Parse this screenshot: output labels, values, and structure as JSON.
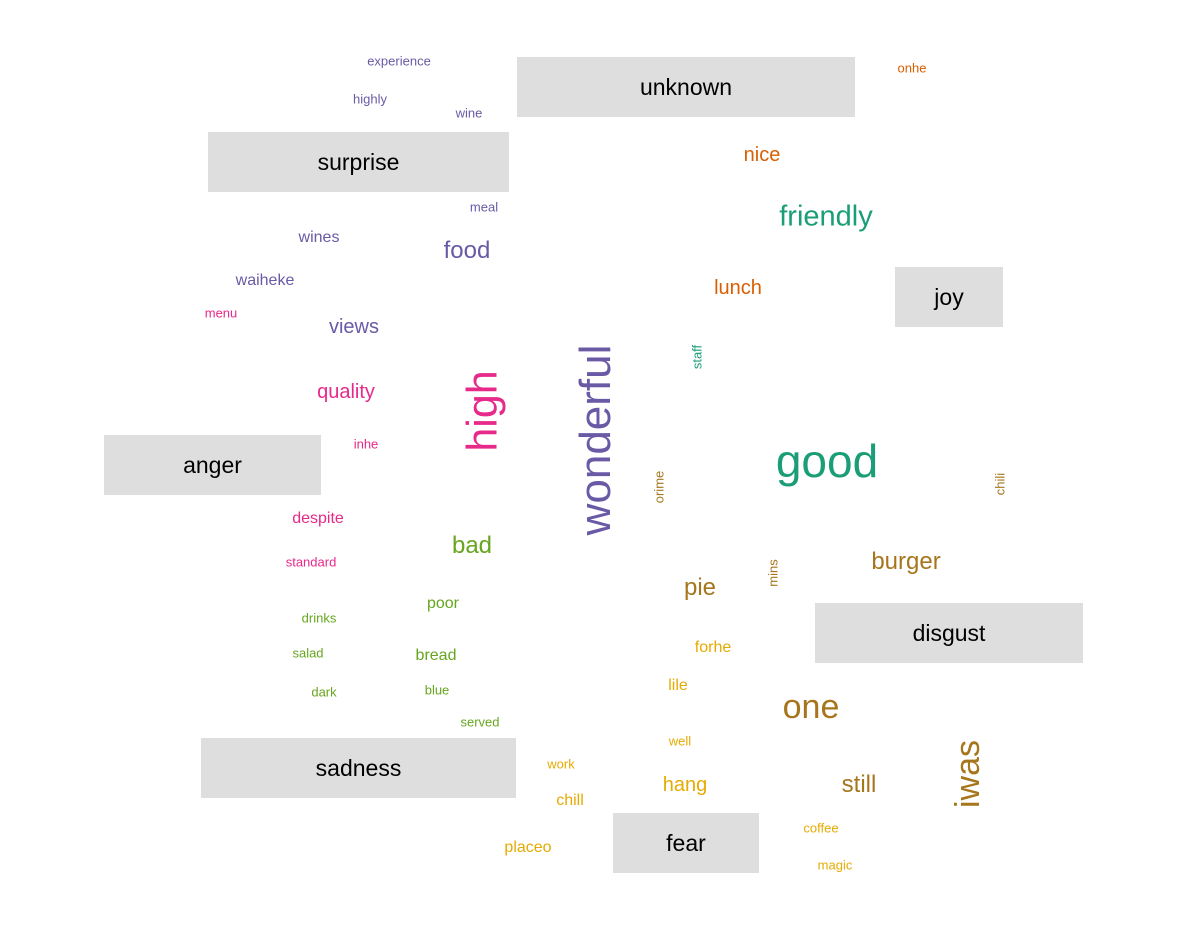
{
  "chart_data": {
    "type": "wordcloud",
    "colors": {
      "surprise": "#6a5aa6",
      "unknown": "#d95f02",
      "joy": "#1b9e77",
      "anger": "#e7298a",
      "sadness": "#66a61e",
      "disgust": "#a6761d",
      "fear": "#e6ab02"
    },
    "groups": [
      {
        "label": "unknown",
        "words": [
          {
            "text": "onhe",
            "size": 1
          },
          {
            "text": "nice",
            "size": 3
          },
          {
            "text": "lunch",
            "size": 3
          }
        ]
      },
      {
        "label": "surprise",
        "words": [
          {
            "text": "experience",
            "size": 1
          },
          {
            "text": "highly",
            "size": 1
          },
          {
            "text": "wine",
            "size": 1
          },
          {
            "text": "meal",
            "size": 1
          },
          {
            "text": "wines",
            "size": 2
          },
          {
            "text": "food",
            "size": 4
          },
          {
            "text": "waiheke",
            "size": 2
          },
          {
            "text": "views",
            "size": 3
          },
          {
            "text": "wonderful",
            "size": 10
          }
        ]
      },
      {
        "label": "joy",
        "words": [
          {
            "text": "friendly",
            "size": 5
          },
          {
            "text": "staff",
            "size": 1
          },
          {
            "text": "good",
            "size": 9
          }
        ]
      },
      {
        "label": "anger",
        "words": [
          {
            "text": "menu",
            "size": 1
          },
          {
            "text": "quality",
            "size": 3
          },
          {
            "text": "high",
            "size": 7
          },
          {
            "text": "inhe",
            "size": 1
          },
          {
            "text": "despite",
            "size": 2
          },
          {
            "text": "standard",
            "size": 1
          }
        ]
      },
      {
        "label": "sadness",
        "words": [
          {
            "text": "bad",
            "size": 4
          },
          {
            "text": "poor",
            "size": 2
          },
          {
            "text": "drinks",
            "size": 1
          },
          {
            "text": "bread",
            "size": 2
          },
          {
            "text": "salad",
            "size": 1
          },
          {
            "text": "dark",
            "size": 1
          },
          {
            "text": "blue",
            "size": 1
          },
          {
            "text": "served",
            "size": 1
          }
        ]
      },
      {
        "label": "disgust",
        "words": [
          {
            "text": "orime",
            "size": 1
          },
          {
            "text": "chili",
            "size": 1
          },
          {
            "text": "mins",
            "size": 1
          },
          {
            "text": "burger",
            "size": 4
          },
          {
            "text": "pie",
            "size": 4
          },
          {
            "text": "one",
            "size": 6
          },
          {
            "text": "iwas",
            "size": 6
          },
          {
            "text": "still",
            "size": 4
          }
        ]
      },
      {
        "label": "fear",
        "words": [
          {
            "text": "forhe",
            "size": 2
          },
          {
            "text": "lile",
            "size": 2
          },
          {
            "text": "well",
            "size": 1
          },
          {
            "text": "work",
            "size": 1
          },
          {
            "text": "hang",
            "size": 3
          },
          {
            "text": "chill",
            "size": 2
          },
          {
            "text": "coffee",
            "size": 1
          },
          {
            "text": "placeo",
            "size": 2
          },
          {
            "text": "magic",
            "size": 1
          }
        ]
      }
    ]
  }
}
